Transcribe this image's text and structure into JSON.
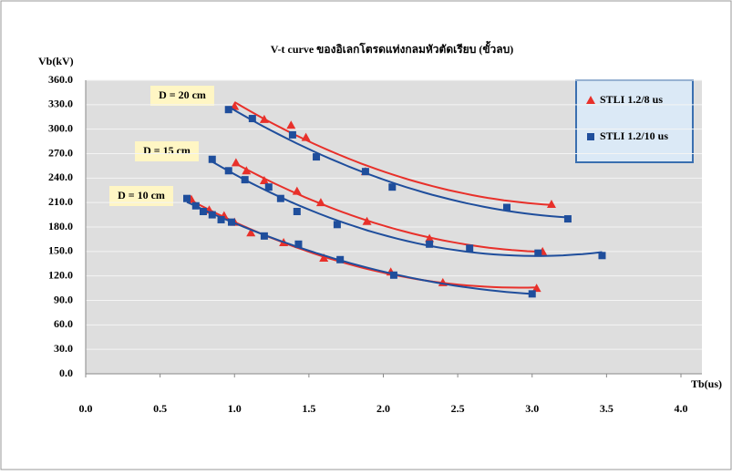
{
  "chart_data": {
    "type": "scatter",
    "title": "V-t curve ของอิเลกโตรดแท่งกลมหัวตัดเรียบ (ขั้วลบ)",
    "y_label": "Vb(kV)",
    "x_label": "Tb(us)",
    "xlim": [
      0,
      4
    ],
    "xticks": [
      {
        "value": 0,
        "label": "0.0"
      },
      {
        "value": 0.5,
        "label": "0.5"
      },
      {
        "value": 1,
        "label": "1.0"
      },
      {
        "value": 1.5,
        "label": "1.5"
      },
      {
        "value": 2,
        "label": "2.0"
      },
      {
        "value": 2.5,
        "label": "2.5"
      },
      {
        "value": 3,
        "label": "3.0"
      },
      {
        "value": 3.5,
        "label": "3.5"
      },
      {
        "value": 4,
        "label": "4.0"
      }
    ],
    "ylim": [
      0,
      360
    ],
    "yticks": [
      {
        "value": 0,
        "label": "0.0"
      },
      {
        "value": 30,
        "label": "30.0"
      },
      {
        "value": 60,
        "label": "60.0"
      },
      {
        "value": 90,
        "label": "90.0"
      },
      {
        "value": 120,
        "label": "120.0"
      },
      {
        "value": 150,
        "label": "150.0"
      },
      {
        "value": 180,
        "label": "180.0"
      },
      {
        "value": 210,
        "label": "210.0"
      },
      {
        "value": 240,
        "label": "240.0"
      },
      {
        "value": 270,
        "label": "270.0"
      },
      {
        "value": 300,
        "label": "300.0"
      },
      {
        "value": 330,
        "label": "330.0"
      },
      {
        "value": 360,
        "label": "360.0"
      }
    ],
    "grid": true,
    "annotations": [
      "D = 20 cm",
      "D = 15 cm",
      "D = 10 cm"
    ],
    "series": [
      {
        "name": "STLI 1.2/8 us",
        "color": "#e8302a",
        "marker": "triangle",
        "groups": [
          {
            "x": [
              1.0,
              1.2,
              1.38,
              1.48,
              1.88,
              3.13
            ],
            "y": [
              328,
              312,
              305,
              290,
              248,
              208
            ]
          },
          {
            "x": [
              1.01,
              1.08,
              1.2,
              1.42,
              1.58,
              1.89,
              2.31,
              3.07
            ],
            "y": [
              259,
              249,
              237,
              224,
              210,
              187,
              166,
              150
            ]
          },
          {
            "x": [
              0.71,
              0.83,
              0.93,
              1.0,
              1.11,
              1.33,
              1.6,
              2.05,
              2.4,
              3.03
            ],
            "y": [
              214,
              201,
              194,
              186,
              173,
              161,
              142,
              125,
              112,
              105
            ]
          }
        ]
      },
      {
        "name": "STLI 1.2/10 us",
        "color": "#1f4e9c",
        "marker": "square",
        "groups": [
          {
            "x": [
              0.96,
              1.12,
              1.39,
              1.55,
              1.88,
              2.06,
              2.83,
              3.24
            ],
            "y": [
              324,
              313,
              293,
              266,
              248,
              229,
              204,
              190
            ]
          },
          {
            "x": [
              0.85,
              0.96,
              1.07,
              1.23,
              1.31,
              1.42,
              1.69,
              2.31,
              2.58,
              3.04,
              3.47
            ],
            "y": [
              263,
              249,
              238,
              229,
              215,
              199,
              183,
              159,
              154,
              148,
              145
            ]
          },
          {
            "x": [
              0.68,
              0.74,
              0.79,
              0.85,
              0.91,
              0.98,
              1.2,
              1.43,
              1.71,
              2.07,
              3.0
            ],
            "y": [
              215,
              206,
              199,
              195,
              189,
              186,
              169,
              159,
              140,
              121,
              98
            ]
          }
        ]
      }
    ]
  }
}
